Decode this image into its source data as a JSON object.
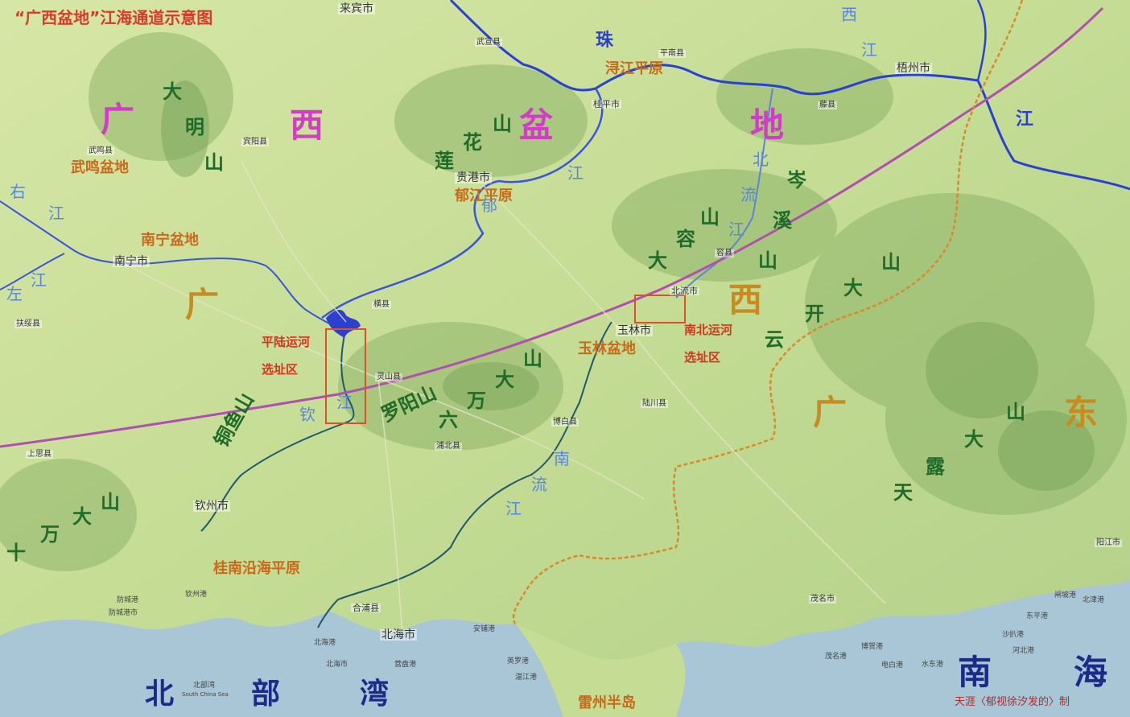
{
  "title": "“广西盆地”江海通道示意图",
  "credit": "天涯〈郁视徐汐发的〉制",
  "regions": {
    "guangxi_1": "广",
    "guangxi_2": "西",
    "pendi_1": "盆",
    "pendi_2": "地",
    "guangxi_w": "广",
    "guangxi_e": "西",
    "guangdong_1": "广",
    "guangdong_2": "东"
  },
  "seas": {
    "beibu_1": "北",
    "beibu_2": "部",
    "beibu_3": "湾",
    "nanhai_1": "南",
    "nanhai_2": "海"
  },
  "mountains": {
    "daming_1": "大",
    "daming_2": "明",
    "daming_3": "山",
    "lianhua_1": "莲",
    "lianhua_2": "花",
    "lianhua_3": "山",
    "darong_1": "大",
    "darong_2": "容",
    "darong_3": "山",
    "yunkai_1": "云",
    "yunkai_2": "开",
    "yunkai_3": "大",
    "yunkai_4": "山",
    "liuwan_1": "六",
    "liuwan_2": "万",
    "liuwan_3": "大",
    "liuwan_4": "山",
    "luoyang": "罗阳山",
    "tongyu": "铜鱼山",
    "shiwan_1": "十",
    "shiwan_2": "万",
    "shiwan_3": "大",
    "shiwan_4": "山",
    "tianlu_1": "天",
    "tianlu_2": "露",
    "tianlu_3": "大",
    "tianlu_4": "山",
    "mounteast": "山",
    "ecircle_1": "岑",
    "ecircle_2": "溪",
    "ecircle_3": "山"
  },
  "rivers": {
    "zhu": "珠",
    "jiang_e": "江",
    "xi_1": "西",
    "xi_2": "江",
    "yu_1": "郁",
    "yu_2": "江",
    "you_1": "右",
    "you_2": "江",
    "zuo_1": "左",
    "zuo_2": "江",
    "beiliu_1": "北",
    "beiliu_2": "流",
    "beiliu_3": "江",
    "qin_1": "钦",
    "qin_2": "江",
    "nanliu_1": "南",
    "nanliu_2": "流",
    "nanliu_3": "江"
  },
  "plains": {
    "xunjiang": "浔江平原",
    "wuming": "武鸣盆地",
    "yujiang": "郁江平原",
    "nanning": "南宁盆地",
    "yulin": "玉林盆地",
    "guinan": "桂南沿海平原",
    "leizhou": "雷州半岛"
  },
  "canals": {
    "pinglu_1": "平陆运河",
    "pinglu_2": "选址区",
    "nanbei_1": "南北运河",
    "nanbei_2": "选址区"
  },
  "cities": {
    "laibin": "来宾市",
    "wuxuan": "武宣县",
    "pingnan": "平南县",
    "wuzhou": "梧州市",
    "guiping": "桂平市",
    "tengxian": "藤县",
    "wuming_xian": "武鸣县",
    "guigang": "贵港市",
    "binyang": "宾阳县",
    "nanning": "南宁市",
    "hengxian": "横县",
    "rongxian": "容县",
    "beiliu": "北流市",
    "yulin": "玉林市",
    "lingshan": "灵山县",
    "bobai": "博白县",
    "luchuan": "陆川县",
    "pubei": "浦北县",
    "qinzhou": "钦州市",
    "hepu": "合浦县",
    "beihai": "北海市",
    "fusui": "扶绥县",
    "shangsi": "上思县",
    "maoming": "茂名市",
    "yangjiang": "阳江市"
  },
  "small_labels": {
    "s1": "钦州港",
    "s2": "防城港",
    "s3": "防城港市",
    "s4": "北海港",
    "s5": "北海市",
    "s6": "营盘港",
    "s7": "北部湾",
    "s8": "South China Sea",
    "s9": "安铺港",
    "s10": "英罗港",
    "s11": "湛江港",
    "s12": "茂名港",
    "s13": "电白港",
    "s14": "水东港",
    "s15": "博贺港",
    "s16": "闸坡港",
    "s17": "北津港",
    "s18": "河北港",
    "s19": "东平港",
    "s20": "沙扒港"
  },
  "colors": {
    "big_river": "#2b3fd0",
    "rail": "#b04fb0",
    "province_border": "#d98a2a",
    "canal_box": "#d8532a",
    "sea": "#a8c6d6"
  }
}
